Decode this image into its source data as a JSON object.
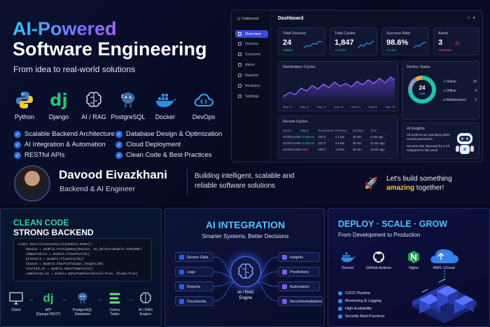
{
  "hero": {
    "title_line1": "AI-Powered",
    "title_line2": "Software Engineering",
    "subtitle": "From idea to real-world solutions"
  },
  "tech_stack": [
    {
      "label": "Python",
      "icon": "python-icon"
    },
    {
      "label": "Django",
      "icon": "django-icon"
    },
    {
      "label": "AI / RAG",
      "icon": "brain-icon"
    },
    {
      "label": "PostgreSQL",
      "icon": "postgresql-icon"
    },
    {
      "label": "Docker",
      "icon": "docker-icon"
    },
    {
      "label": "DevOps",
      "icon": "cloud-icon"
    }
  ],
  "features": [
    "Scalable Backend Architecture",
    "Database Design & Optimization",
    "AI Integration & Automation",
    "Cloud Deployment",
    "RESTful APIs",
    "Clean Code & Best Practices"
  ],
  "profile": {
    "name": "Davood Eivazkhani",
    "role": "Backend & AI Engineer",
    "tagline": "Building intelligent, scalable and reliable software solutions",
    "cta_line1": "Let's build something",
    "cta_highlight": "amazing",
    "cta_line2": "together!"
  },
  "dashboard": {
    "brand": "Outbound",
    "title": "Dashboard",
    "nav": [
      "Overview",
      "Devices",
      "Sessions",
      "Alerts",
      "Reports",
      "Analytics",
      "Settings"
    ],
    "active_nav": "Overview",
    "kpis": [
      {
        "label": "Total Devices",
        "value": "24",
        "sub": "Online",
        "sub_color": "#31d17c"
      },
      {
        "label": "Total Cycles",
        "value": "1,847",
        "sub": "+12.5%",
        "sub_color": "#31d17c"
      },
      {
        "label": "Success Rate",
        "value": "98.6%",
        "sub": "+2.1%",
        "sub_color": "#31d17c"
      },
      {
        "label": "Alerts",
        "value": "3",
        "sub": "Attention",
        "sub_color": "#ff5a5a"
      }
    ],
    "cycles_chart": {
      "title": "Sterilization Cycles",
      "x_labels": [
        "May 10",
        "May 11",
        "May 12",
        "May 13",
        "May 14",
        "May 15",
        "May 16"
      ]
    },
    "device_status": {
      "title": "Device Status",
      "total": "24",
      "total_label": "Total",
      "items": [
        {
          "label": "Online",
          "value": "18",
          "color": "#22c3a6"
        },
        {
          "label": "Offline",
          "value": "4",
          "color": "#8a93b8"
        },
        {
          "label": "Maintenance",
          "value": "2",
          "color": "#f2a93b"
        }
      ]
    },
    "recent_cycles": {
      "title": "Recent Cycles",
      "headers": [
        "Device",
        "Status",
        "Temperature",
        "Pressure",
        "Duration",
        "Time"
      ],
      "rows": [
        [
          "AUTOCLAVE-01",
          "Completed",
          "134°C",
          "2.1 bar",
          "45 min",
          "2 min ago"
        ],
        [
          "AUTOCLAVE-02",
          "Completed",
          "121°C",
          "2.0 bar",
          "60 min",
          "10 min ago"
        ],
        [
          "AUTOCLAVE-03",
          "Failed",
          "129°C",
          "1.8 bar",
          "30 min",
          "15 min ago"
        ]
      ]
    },
    "insights": {
      "title": "AI Insights",
      "text1": "All systems are operating within normal parameters.",
      "text2": "Success rate improved by 2.1% compared to last week."
    }
  },
  "panel_code": {
    "title1": "CLEAN CODE",
    "title2": "STRONG BACKEND",
    "code": "class SterilizationCycle(models.Model):\n    device = models.ForeignKey(Device, on_delete=models.CASCADE)\n    temperature = models.FloatField()\n    pressure = models.FloatField()\n    status = models.CharField(max_length=20)\n    started_at = models.DateTimeField()\n    completed_at = models.DateTimeField(null=True, blank=True)",
    "flow": [
      {
        "label": "Client",
        "icon": "monitor-icon"
      },
      {
        "label": "API\n(Django REST)",
        "icon": "django-icon"
      },
      {
        "label": "PostgreSQL\nDatabase",
        "icon": "postgresql-icon"
      },
      {
        "label": "Celery\nTasks",
        "icon": "celery-icon"
      },
      {
        "label": "AI / RAG\nEngine",
        "icon": "brain-icon"
      }
    ]
  },
  "panel_ai": {
    "title": "AI INTEGRATION",
    "subtitle": "Smarter Systems, Better Decisions",
    "inputs": [
      "Sensor Data",
      "Logs",
      "Reports",
      "Documents"
    ],
    "outputs": [
      "Insights",
      "Predictions",
      "Automation",
      "Recommendations"
    ],
    "engine": "AI / RAG\nEngine"
  },
  "panel_deploy": {
    "title": "DEPLOY · SCALE · GROW",
    "subtitle": "From Development to Production",
    "tools": [
      {
        "label": "Docker",
        "icon": "docker-icon"
      },
      {
        "label": "GitHub Actions",
        "icon": "github-icon"
      },
      {
        "label": "Nginx",
        "icon": "nginx-icon"
      },
      {
        "label": "AWS / Cloud",
        "icon": "cloud-icon"
      }
    ],
    "list": [
      "CI/CD Pipeline",
      "Monitoring & Logging",
      "High Availability",
      "Security Best Practices"
    ]
  }
}
